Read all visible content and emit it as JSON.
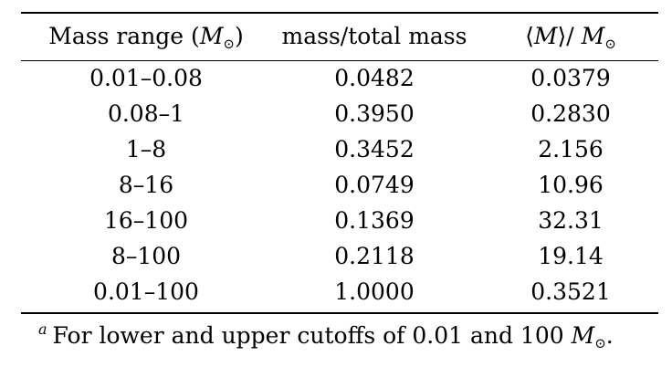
{
  "table": {
    "headers": {
      "col1_prefix": "Mass range (",
      "col1_symbol": "M",
      "col1_subscript": "⊙",
      "col1_suffix": ")",
      "col2": "mass/total mass",
      "col3_prefix": "⟨",
      "col3_symbol": "M",
      "col3_mid": "⟩/ ",
      "col3_symbol2": "M",
      "col3_subscript": "⊙"
    },
    "rows": [
      [
        "0.01–0.08",
        "0.0482",
        "0.0379"
      ],
      [
        "0.08–1",
        "0.3950",
        "0.2830"
      ],
      [
        "1–8",
        "0.3452",
        "2.156"
      ],
      [
        "8–16",
        "0.0749",
        "10.96"
      ],
      [
        "16–100",
        "0.1369",
        "32.31"
      ],
      [
        "8–100",
        "0.2118",
        "19.14"
      ],
      [
        "0.01–100",
        "1.0000",
        "0.3521"
      ]
    ]
  },
  "footnote": {
    "mark": "a",
    "text": "For lower and upper cutoffs of 0.01 and 100 ",
    "symbol": "M",
    "subscript": "⊙",
    "end": "."
  }
}
